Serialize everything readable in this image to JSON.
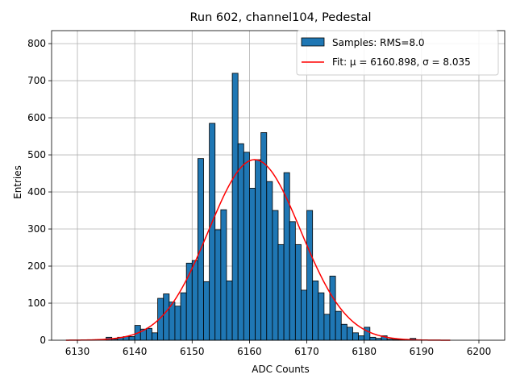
{
  "chart_data": {
    "type": "bar",
    "title": "Run 602, channel104, Pedestal",
    "xlabel": "ADC Counts",
    "ylabel": "Entries",
    "xlim": [
      6125.5,
      6204.5
    ],
    "ylim": [
      0,
      835
    ],
    "xticks": [
      6130,
      6140,
      6150,
      6160,
      6170,
      6180,
      6190,
      6200
    ],
    "yticks": [
      0,
      100,
      200,
      300,
      400,
      500,
      600,
      700,
      800
    ],
    "grid": true,
    "bar_color": "#1f77b4",
    "fit_color": "#ff0000",
    "bin_width": 1,
    "bin_centers": [
      6135.5,
      6136.5,
      6137.5,
      6138.5,
      6139.5,
      6140.5,
      6141.5,
      6142.5,
      6143.5,
      6144.5,
      6145.5,
      6146.5,
      6147.5,
      6148.5,
      6149.5,
      6150.5,
      6151.5,
      6152.5,
      6153.5,
      6154.5,
      6155.5,
      6156.5,
      6157.5,
      6158.5,
      6159.5,
      6160.5,
      6161.5,
      6162.5,
      6163.5,
      6164.5,
      6165.5,
      6166.5,
      6167.5,
      6168.5,
      6169.5,
      6170.5,
      6171.5,
      6172.5,
      6173.5,
      6174.5,
      6175.5,
      6176.5,
      6177.5,
      6178.5,
      6179.5,
      6180.5,
      6181.5,
      6182.5,
      6183.5,
      6184.5,
      6185.5,
      6186.5,
      6187.5,
      6188.5
    ],
    "counts": [
      8,
      3,
      8,
      10,
      10,
      40,
      30,
      32,
      20,
      113,
      125,
      103,
      92,
      128,
      208,
      215,
      490,
      158,
      585,
      298,
      352,
      160,
      720,
      530,
      507,
      410,
      487,
      560,
      428,
      350,
      258,
      452,
      320,
      258,
      135,
      350,
      160,
      128,
      70,
      173,
      78,
      43,
      35,
      20,
      12,
      35,
      8,
      5,
      12,
      3,
      2,
      2,
      2,
      5
    ],
    "fit": {
      "mu": 6160.898,
      "sigma": 8.035,
      "amplitude": 487,
      "x_range": [
        6128,
        6195
      ]
    },
    "legend": {
      "position": "top-right",
      "entries": [
        {
          "label": "Samples: RMS=8.0",
          "kind": "patch"
        },
        {
          "label": "Fit: μ = 6160.898, σ = 8.035",
          "kind": "line"
        }
      ]
    }
  }
}
